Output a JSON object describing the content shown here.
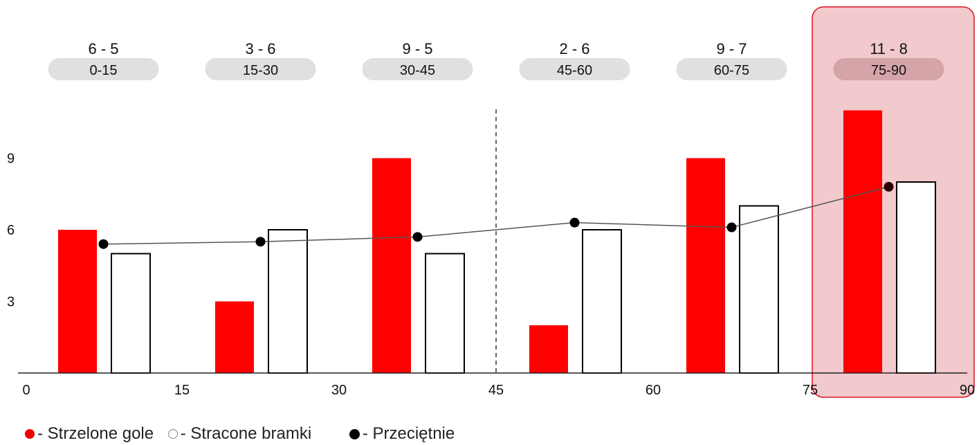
{
  "chart_data": {
    "type": "bar",
    "categories": [
      "0-15",
      "15-30",
      "30-45",
      "45-60",
      "60-75",
      "75-90"
    ],
    "scores": [
      "6 - 5",
      "3 - 6",
      "9 - 5",
      "2 - 6",
      "9 - 7",
      "11 - 8"
    ],
    "series": [
      {
        "name": "Strzelone gole",
        "values": [
          6,
          3,
          9,
          2,
          9,
          11
        ],
        "color": "#ff0000"
      },
      {
        "name": "Stracone bramki",
        "values": [
          5,
          6,
          5,
          6,
          7,
          8
        ],
        "color": "#ffffff"
      }
    ],
    "line": {
      "name": "Przeciętnie",
      "x": [
        7.5,
        22.5,
        37.5,
        52.5,
        67.5,
        82.5
      ],
      "values": [
        5.4,
        5.5,
        5.7,
        6.3,
        6.1,
        7.8
      ]
    },
    "x_ticks": [
      0,
      15,
      30,
      45,
      60,
      75,
      90
    ],
    "y_ticks": [
      3,
      6,
      9
    ],
    "xlim": [
      0,
      90
    ],
    "ylim": [
      0,
      12
    ],
    "halftime_marker": 45,
    "highlighted_category": "75-90"
  },
  "legend": {
    "scored": "- Strzelone gole",
    "conceded": "- Stracone bramki",
    "average": "- Przeciętnie"
  },
  "colors": {
    "scored": "#ff0000",
    "highlight_fill": "#f2c9cc",
    "highlight_stroke": "#dd1122",
    "pill": "#e0e0e0",
    "pill_highlight": "#d4a4a8"
  }
}
